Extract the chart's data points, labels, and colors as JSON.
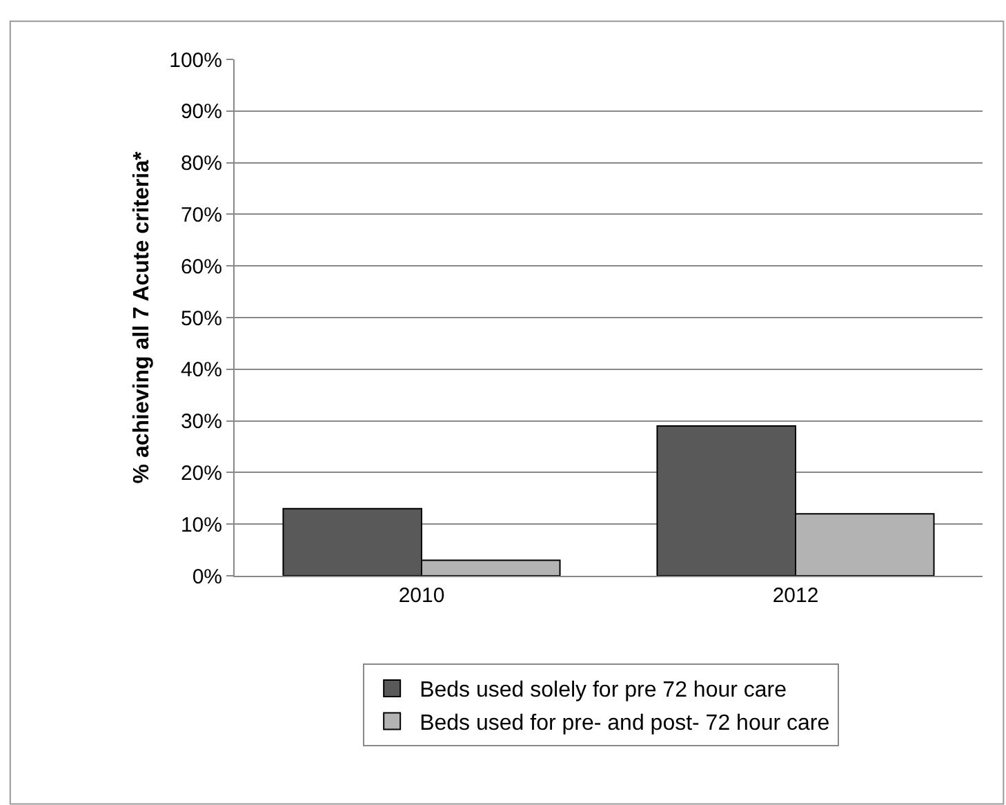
{
  "chart_data": {
    "type": "bar",
    "ylabel": "% achieving all 7 Acute criteria*",
    "categories": [
      "2010",
      "2012"
    ],
    "series": [
      {
        "name": "Beds used solely for pre 72 hour care",
        "color": "#595959",
        "values": [
          13,
          29
        ]
      },
      {
        "name": "Beds used for pre- and post- 72 hour care",
        "color": "#b3b3b3",
        "values": [
          3,
          12
        ]
      }
    ],
    "ylim": [
      0,
      100
    ],
    "yticks": [
      {
        "value": 0,
        "label": "0%"
      },
      {
        "value": 10,
        "label": "10%"
      },
      {
        "value": 20,
        "label": "20%"
      },
      {
        "value": 30,
        "label": "30%"
      },
      {
        "value": 40,
        "label": "40%"
      },
      {
        "value": 50,
        "label": "50%"
      },
      {
        "value": 60,
        "label": "60%"
      },
      {
        "value": 70,
        "label": "70%"
      },
      {
        "value": 80,
        "label": "80%"
      },
      {
        "value": 90,
        "label": "90%"
      },
      {
        "value": 100,
        "label": "100%"
      }
    ],
    "grid": "y",
    "legend": "bottom"
  }
}
